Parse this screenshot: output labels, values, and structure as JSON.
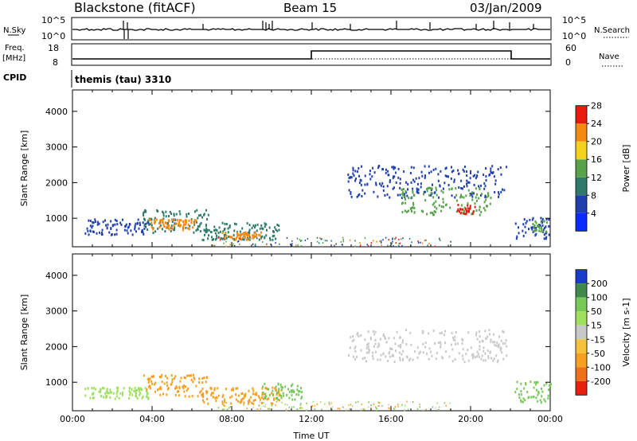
{
  "header": {
    "station": "Blackstone (fitACF)",
    "beam": "Beam 15",
    "date": "03/Jan/2009"
  },
  "strips": {
    "nsky_label": "N.Sky",
    "nsky_ticks": [
      "10^5",
      "10^0"
    ],
    "nsearch_label": "N.Search",
    "freq_label": "Freq.",
    "freq_unit": "[MHz]",
    "freq_ticks": [
      "18",
      "8"
    ],
    "nave_label": "Nave",
    "nave_ticks": [
      "60",
      "0"
    ],
    "cpid_label": "CPID",
    "cpid_value": "themis (tau) 3310"
  },
  "chart_data": [
    {
      "type": "heatmap",
      "name": "power",
      "ylabel": "Slant Range [km]",
      "ylim": [
        200,
        4600
      ],
      "y_ticks": [
        1000,
        2000,
        3000,
        4000
      ],
      "colorbar": {
        "label": "Power [dB]",
        "ticks": [
          "4",
          "8",
          "12",
          "16",
          "20",
          "24",
          "28"
        ],
        "colors": [
          "#0a2aff",
          "#1f3fae",
          "#2f7a6a",
          "#58a24a",
          "#f2d21a",
          "#f58a12",
          "#e81b10"
        ]
      },
      "blobs": [
        {
          "x": [
            0.6,
            3.8
          ],
          "y": [
            560,
            1000
          ],
          "color": "#1f3fae"
        },
        {
          "x": [
            3.5,
            6.8
          ],
          "y": [
            620,
            1280
          ],
          "color": "#2f7a6a"
        },
        {
          "x": [
            3.8,
            6.2
          ],
          "y": [
            700,
            1000
          ],
          "color": "#f58a12"
        },
        {
          "x": [
            6.5,
            10.5
          ],
          "y": [
            420,
            900
          ],
          "color": "#2f7a6a"
        },
        {
          "x": [
            7.5,
            9.5
          ],
          "y": [
            430,
            640
          ],
          "color": "#f58a12"
        },
        {
          "x": [
            13.8,
            21.8
          ],
          "y": [
            1600,
            2500
          ],
          "color": "#1f3fae"
        },
        {
          "x": [
            16.5,
            21.0
          ],
          "y": [
            1100,
            1900
          ],
          "color": "#58a24a"
        },
        {
          "x": [
            19.3,
            20.2
          ],
          "y": [
            1150,
            1420
          ],
          "color": "#e81b10"
        },
        {
          "x": [
            22.2,
            24.0
          ],
          "y": [
            450,
            1050
          ],
          "color": "#1f3fae"
        },
        {
          "x": [
            23.0,
            23.8
          ],
          "y": [
            650,
            950
          ],
          "color": "#58a24a"
        }
      ]
    },
    {
      "type": "heatmap",
      "name": "velocity",
      "xlabel": "Time UT",
      "ylabel": "Slant Range [km]",
      "xlim": [
        0,
        24
      ],
      "x_ticks": [
        "00:00",
        "04:00",
        "08:00",
        "12:00",
        "16:00",
        "20:00",
        "00:00"
      ],
      "ylim": [
        200,
        4600
      ],
      "y_ticks": [
        1000,
        2000,
        3000,
        4000
      ],
      "colorbar": {
        "label": "Velocity [m s-1]",
        "ticks": [
          "200",
          "100",
          "50",
          "15",
          "-15",
          "-50",
          "-100",
          "-200"
        ],
        "colors": [
          "#1a3ccc",
          "#3f8a4a",
          "#78c85a",
          "#9fe05e",
          "#c8c8c8",
          "#f6c23a",
          "#f5a020",
          "#f07018",
          "#e82010"
        ]
      },
      "blobs": [
        {
          "x": [
            0.6,
            3.8
          ],
          "y": [
            560,
            880
          ],
          "color": "#9fe05e"
        },
        {
          "x": [
            3.5,
            6.8
          ],
          "y": [
            620,
            1250
          ],
          "color": "#f5a020"
        },
        {
          "x": [
            6.5,
            10.5
          ],
          "y": [
            420,
            880
          ],
          "color": "#f5a020"
        },
        {
          "x": [
            9.5,
            11.5
          ],
          "y": [
            500,
            1000
          ],
          "color": "#78c85a"
        },
        {
          "x": [
            13.8,
            21.8
          ],
          "y": [
            1600,
            2500
          ],
          "color": "#c8c8c8"
        },
        {
          "x": [
            22.2,
            24.0
          ],
          "y": [
            450,
            1050
          ],
          "color": "#78c85a"
        }
      ]
    }
  ]
}
